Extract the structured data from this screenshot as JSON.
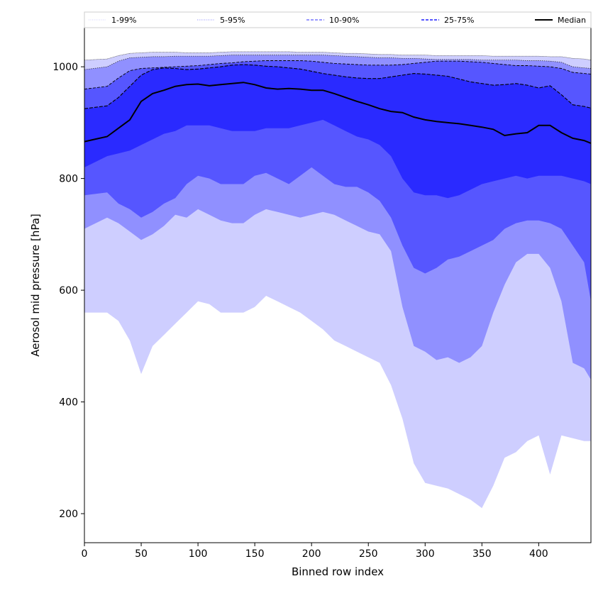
{
  "chart_data": {
    "type": "area",
    "xlabel": "Binned row index",
    "ylabel": "Aerosol mid pressure [hPa]",
    "xlim": [
      0,
      446
    ],
    "ylim": [
      148,
      1070
    ],
    "xticks": [
      0,
      50,
      100,
      150,
      200,
      250,
      300,
      350,
      400
    ],
    "yticks": [
      200,
      400,
      600,
      800,
      1000
    ],
    "grid": false,
    "legend_position": "top, above plot (single row)",
    "legend": [
      {
        "label": "1-99%",
        "color": "#d0d0ff",
        "style": "dotted"
      },
      {
        "label": "5-95%",
        "color": "#8f8fff",
        "style": "dotted"
      },
      {
        "label": "10-90%",
        "color": "#5a5aff",
        "style": "dashed"
      },
      {
        "label": "25-75%",
        "color": "#1f1fff",
        "style": "dashed"
      },
      {
        "label": "Median",
        "color": "#000000",
        "style": "solid"
      }
    ],
    "x": [
      0,
      20,
      30,
      40,
      50,
      60,
      70,
      80,
      90,
      100,
      110,
      120,
      130,
      140,
      150,
      160,
      170,
      180,
      190,
      200,
      210,
      220,
      230,
      240,
      250,
      260,
      270,
      280,
      290,
      300,
      310,
      320,
      330,
      340,
      350,
      360,
      370,
      380,
      390,
      400,
      410,
      420,
      430,
      440,
      446
    ],
    "bands": [
      {
        "name": "1-99%",
        "color": "#ceceff",
        "lower": [
          560,
          560,
          545,
          510,
          450,
          500,
          520,
          540,
          560,
          580,
          575,
          560,
          560,
          560,
          570,
          590,
          580,
          570,
          560,
          545,
          530,
          510,
          500,
          490,
          480,
          470,
          430,
          370,
          290,
          255,
          250,
          245,
          235,
          225,
          210,
          250,
          300,
          310,
          330,
          340,
          270,
          340,
          335,
          330,
          330
        ],
        "upper": [
          1012,
          1014,
          1020,
          1024,
          1025,
          1026,
          1026,
          1026,
          1025,
          1025,
          1025,
          1026,
          1027,
          1027,
          1027,
          1027,
          1027,
          1027,
          1026,
          1026,
          1026,
          1025,
          1024,
          1024,
          1023,
          1022,
          1022,
          1021,
          1021,
          1021,
          1020,
          1020,
          1020,
          1020,
          1020,
          1019,
          1019,
          1019,
          1019,
          1019,
          1018,
          1018,
          1015,
          1014,
          1012
        ]
      },
      {
        "name": "5-95%",
        "color": "#9090ff",
        "lower": [
          710,
          730,
          720,
          705,
          690,
          700,
          715,
          735,
          730,
          745,
          735,
          725,
          720,
          720,
          735,
          745,
          740,
          735,
          730,
          735,
          740,
          735,
          725,
          715,
          705,
          700,
          670,
          570,
          500,
          490,
          475,
          480,
          470,
          480,
          500,
          560,
          610,
          650,
          665,
          665,
          640,
          580,
          470,
          460,
          440
        ],
        "upper": [
          995,
          1000,
          1010,
          1016,
          1017,
          1018,
          1018,
          1019,
          1019,
          1019,
          1019,
          1020,
          1021,
          1021,
          1021,
          1021,
          1021,
          1021,
          1021,
          1021,
          1021,
          1020,
          1019,
          1018,
          1017,
          1016,
          1016,
          1015,
          1015,
          1014,
          1013,
          1013,
          1013,
          1013,
          1012,
          1012,
          1012,
          1012,
          1011,
          1011,
          1010,
          1008,
          1000,
          998,
          997
        ]
      },
      {
        "name": "10-90%",
        "color": "#5656ff",
        "lower": [
          770,
          775,
          755,
          745,
          730,
          740,
          755,
          765,
          790,
          805,
          800,
          790,
          790,
          790,
          805,
          810,
          800,
          790,
          805,
          820,
          805,
          790,
          785,
          785,
          775,
          760,
          730,
          680,
          640,
          630,
          640,
          655,
          660,
          670,
          680,
          690,
          710,
          720,
          725,
          725,
          720,
          710,
          680,
          650,
          580
        ]
      },
      {
        "name": "25-75%",
        "color": "#2a2aff",
        "lower": [
          820,
          840,
          845,
          850,
          860,
          870,
          880,
          885,
          895,
          895,
          895,
          890,
          885,
          885,
          885,
          890,
          890,
          890,
          895,
          900,
          905,
          895,
          885,
          875,
          870,
          860,
          840,
          800,
          775,
          770,
          770,
          765,
          770,
          780,
          790,
          795,
          800,
          805,
          800,
          805,
          805,
          805,
          800,
          795,
          790
        ],
        "upper": [
          960,
          965,
          980,
          993,
          997,
          998,
          999,
          1000,
          1001,
          1002,
          1004,
          1006,
          1007,
          1009,
          1010,
          1011,
          1011,
          1011,
          1011,
          1010,
          1008,
          1006,
          1005,
          1004,
          1003,
          1003,
          1003,
          1004,
          1006,
          1008,
          1010,
          1010,
          1010,
          1009,
          1008,
          1006,
          1004,
          1002,
          1002,
          1001,
          1000,
          997,
          990,
          988,
          987
        ]
      }
    ],
    "inner_band_upper": [
      925,
      930,
      945,
      965,
      985,
      995,
      998,
      997,
      995,
      996,
      998,
      1000,
      1003,
      1004,
      1003,
      1001,
      1000,
      998,
      996,
      992,
      988,
      985,
      982,
      980,
      979,
      979,
      982,
      985,
      988,
      987,
      985,
      983,
      978,
      973,
      970,
      967,
      968,
      970,
      967,
      962,
      966,
      950,
      932,
      929,
      926
    ],
    "series": [
      {
        "name": "Median",
        "color": "#000000",
        "values": [
          866,
          875,
          890,
          905,
          938,
          952,
          958,
          965,
          968,
          969,
          966,
          968,
          970,
          972,
          968,
          962,
          960,
          961,
          960,
          958,
          958,
          952,
          945,
          938,
          932,
          925,
          920,
          918,
          910,
          905,
          902,
          900,
          898,
          895,
          892,
          888,
          877,
          880,
          882,
          895,
          895,
          882,
          872,
          868,
          863
        ]
      }
    ]
  }
}
